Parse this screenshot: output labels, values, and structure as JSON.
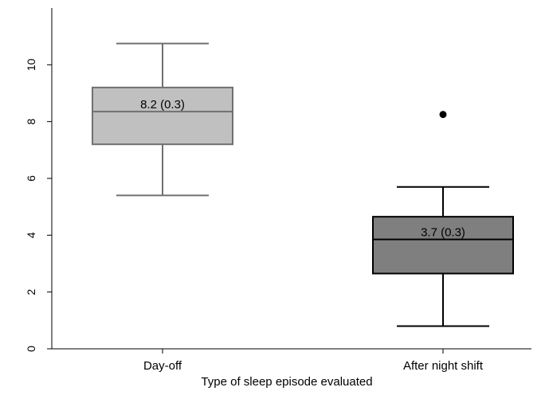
{
  "chart_data": {
    "type": "box",
    "xlabel": "Type of sleep episode evaluated",
    "ylabel": "",
    "ylim": [
      0,
      12
    ],
    "yticks": [
      0,
      2,
      4,
      6,
      8,
      10
    ],
    "boxes": [
      {
        "category": "Day-off",
        "whisker_low": 5.4,
        "q1": 7.2,
        "median": 8.35,
        "q3": 9.2,
        "whisker_high": 10.75,
        "outliers": [],
        "annotation": "8.2 (0.3)",
        "fill": "#c0c0c0",
        "stroke": "#707070"
      },
      {
        "category": "After night shift",
        "whisker_low": 0.8,
        "q1": 2.65,
        "median": 3.85,
        "q3": 4.65,
        "whisker_high": 5.7,
        "outliers": [
          8.25
        ],
        "annotation": "3.7 (0.3)",
        "fill": "#7f7f7f",
        "stroke": "#000000"
      }
    ]
  }
}
